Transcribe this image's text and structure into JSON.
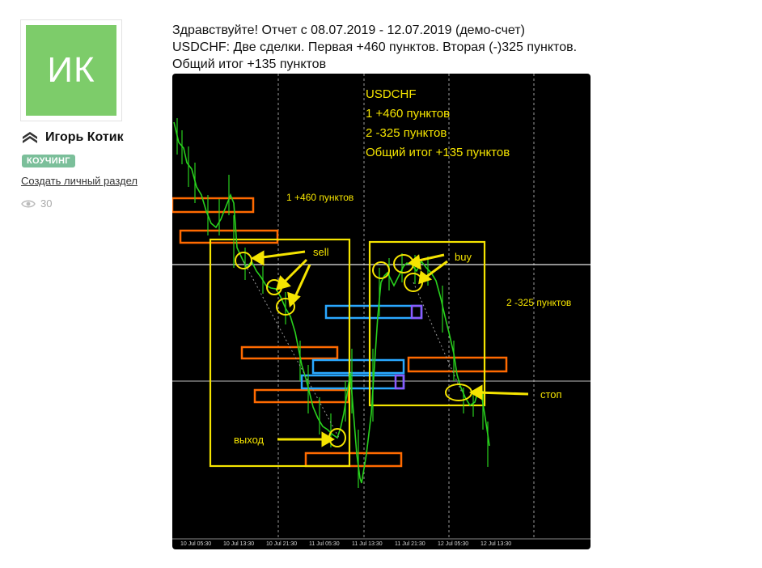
{
  "profile": {
    "initials": "ИК",
    "name": "Игорь Котик",
    "badge": "КОУЧИНГ",
    "create_link": "Создать личный раздел",
    "views": "30"
  },
  "post": {
    "lines": [
      "Здравствуйте! Отчет с 08.07.2019 - 12.07.2019 (демо-счет)",
      "USDCHF: Две сделки. Первая +460 пунктов. Вторая (-)325 пунктов.",
      "Общий итог +135 пунктов"
    ]
  },
  "chart_image": {
    "summary": [
      "USDCHF",
      "1 +460 пунктов",
      "2 -325 пунктов",
      "Общий итог +135 пунктов"
    ],
    "trade1_label": "1 +460 пунктов",
    "trade2_label": "2 -325 пунктов",
    "sell_label": "sell",
    "buy_label": "buy",
    "exit_label": "выход",
    "stop_label": "стоп",
    "time_labels": [
      "10 Jul 05:30",
      "10 Jul 13:30",
      "10 Jul 21:30",
      "11 Jul 05:30",
      "11 Jul 13:30",
      "11 Jul 21:30",
      "12 Jul 05:30",
      "12 Jul 13:30"
    ]
  },
  "colors": {
    "avatar_bg": "#7dcc6a",
    "badge_bg": "#7bbf9a",
    "chart_bg": "#000000",
    "candle_green": "#29d11d",
    "annotation_yellow": "#f5e400",
    "zone_orange": "#ff6a00",
    "zone_blue": "#2aa8ff",
    "zone_purple": "#8a5cff"
  },
  "icons": {
    "rank": "rank-chevrons-icon",
    "views": "eye-icon"
  }
}
